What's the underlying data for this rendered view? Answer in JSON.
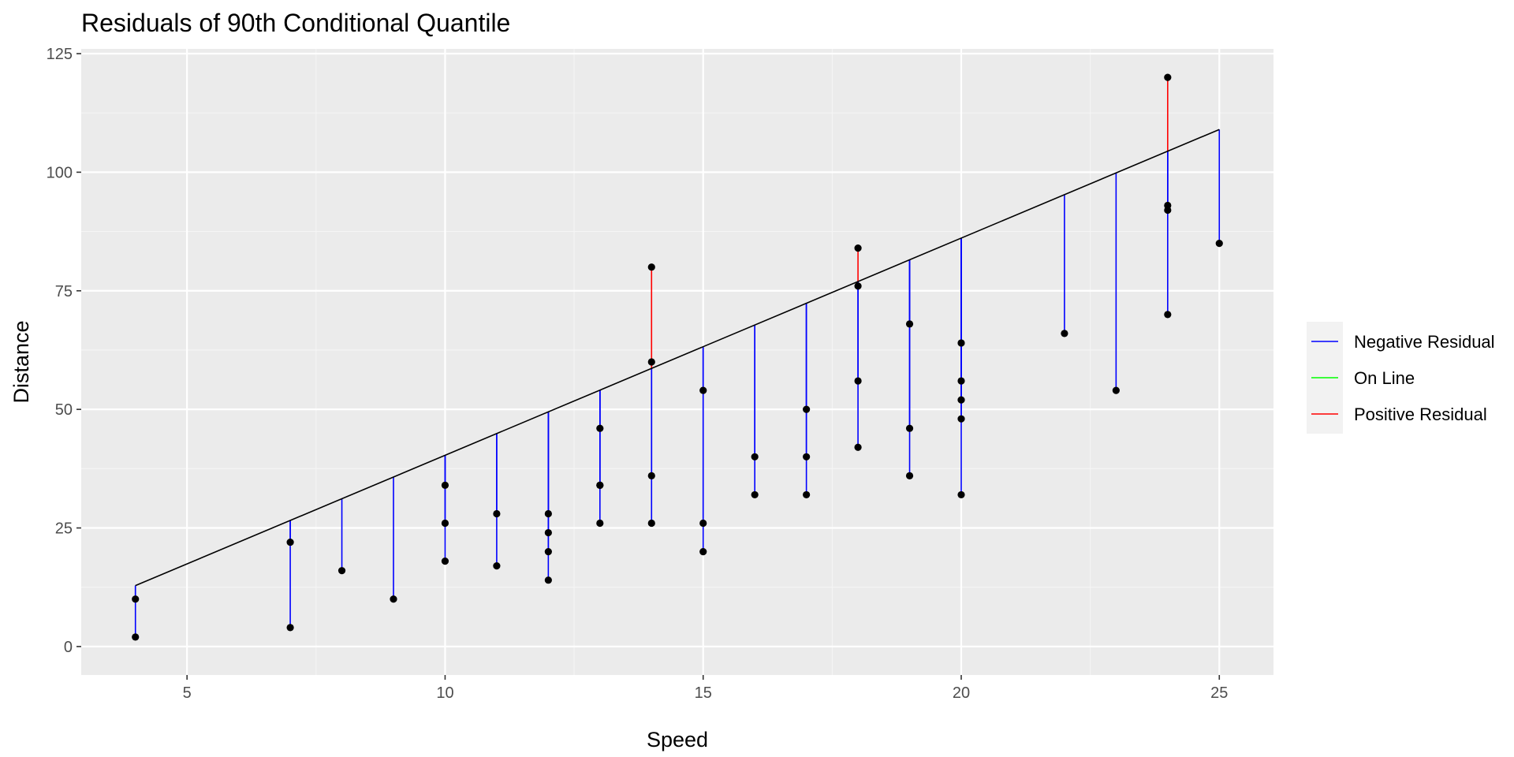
{
  "chart_data": {
    "type": "scatter",
    "title": "Residuals of 90th Conditional Quantile",
    "xlabel": "Speed",
    "ylabel": "Distance",
    "xlim": [
      2.95,
      26.05
    ],
    "ylim": [
      -6,
      126
    ],
    "x_ticks": [
      5,
      10,
      15,
      20,
      25
    ],
    "y_ticks": [
      0,
      25,
      50,
      75,
      100,
      125
    ],
    "grid": true,
    "legend_position": "right",
    "fit_line": {
      "intercept": -5.47,
      "slope": 4.579
    },
    "points": [
      {
        "x": 4,
        "y": 2
      },
      {
        "x": 4,
        "y": 10
      },
      {
        "x": 7,
        "y": 4
      },
      {
        "x": 7,
        "y": 22
      },
      {
        "x": 8,
        "y": 16
      },
      {
        "x": 9,
        "y": 10
      },
      {
        "x": 10,
        "y": 18
      },
      {
        "x": 10,
        "y": 26
      },
      {
        "x": 10,
        "y": 34
      },
      {
        "x": 11,
        "y": 17
      },
      {
        "x": 11,
        "y": 28
      },
      {
        "x": 12,
        "y": 14
      },
      {
        "x": 12,
        "y": 20
      },
      {
        "x": 12,
        "y": 24
      },
      {
        "x": 12,
        "y": 28
      },
      {
        "x": 13,
        "y": 26
      },
      {
        "x": 13,
        "y": 34
      },
      {
        "x": 13,
        "y": 34
      },
      {
        "x": 13,
        "y": 46
      },
      {
        "x": 14,
        "y": 26
      },
      {
        "x": 14,
        "y": 36
      },
      {
        "x": 14,
        "y": 60
      },
      {
        "x": 14,
        "y": 80
      },
      {
        "x": 15,
        "y": 20
      },
      {
        "x": 15,
        "y": 26
      },
      {
        "x": 15,
        "y": 54
      },
      {
        "x": 16,
        "y": 32
      },
      {
        "x": 16,
        "y": 40
      },
      {
        "x": 17,
        "y": 32
      },
      {
        "x": 17,
        "y": 40
      },
      {
        "x": 17,
        "y": 50
      },
      {
        "x": 18,
        "y": 42
      },
      {
        "x": 18,
        "y": 56
      },
      {
        "x": 18,
        "y": 76
      },
      {
        "x": 18,
        "y": 84
      },
      {
        "x": 19,
        "y": 36
      },
      {
        "x": 19,
        "y": 46
      },
      {
        "x": 19,
        "y": 68
      },
      {
        "x": 20,
        "y": 32
      },
      {
        "x": 20,
        "y": 48
      },
      {
        "x": 20,
        "y": 52
      },
      {
        "x": 20,
        "y": 56
      },
      {
        "x": 20,
        "y": 64
      },
      {
        "x": 22,
        "y": 66
      },
      {
        "x": 23,
        "y": 54
      },
      {
        "x": 24,
        "y": 70
      },
      {
        "x": 24,
        "y": 92
      },
      {
        "x": 24,
        "y": 93
      },
      {
        "x": 24,
        "y": 120
      },
      {
        "x": 25,
        "y": 85
      }
    ],
    "legend": {
      "title": "",
      "items": [
        {
          "label": "Negative Residual",
          "color": "#0000ff"
        },
        {
          "label": "On Line",
          "color": "#00ff00"
        },
        {
          "label": "Positive Residual",
          "color": "#ff0000"
        }
      ]
    },
    "colors": {
      "panel": "#ebebeb",
      "grid_major": "#ffffff",
      "grid_minor": "#f5f5f5",
      "line": "#000000",
      "point": "#000000"
    }
  }
}
